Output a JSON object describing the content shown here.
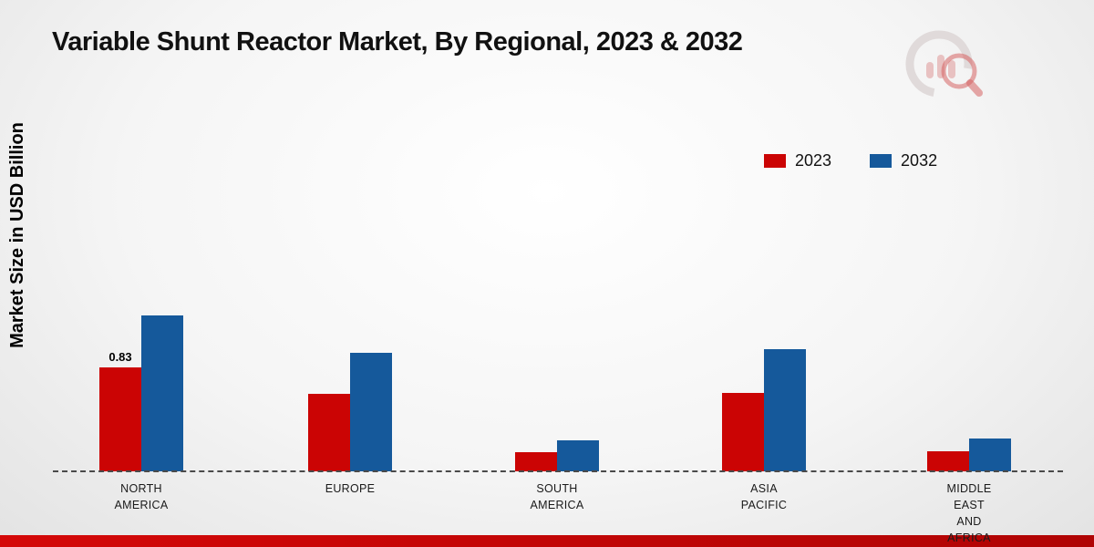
{
  "title": "Variable Shunt Reactor Market, By Regional, 2023 & 2032",
  "y_axis_label": "Market Size in USD Billion",
  "legend": [
    {
      "label": "2023",
      "color": "#cb0404"
    },
    {
      "label": "2032",
      "color": "#15599b"
    }
  ],
  "chart_data": {
    "type": "bar",
    "title": "Variable Shunt Reactor Market, By Regional, 2023 & 2032",
    "ylabel": "Market Size in USD Billion",
    "xlabel": "",
    "ylim": [
      0,
      1.4
    ],
    "grid": false,
    "legend_position": "top-right",
    "baseline_style": "dashed",
    "categories": [
      "NORTH AMERICA",
      "EUROPE",
      "SOUTH AMERICA",
      "ASIA PACIFIC",
      "MIDDLE EAST AND AFRICA"
    ],
    "series": [
      {
        "name": "2023",
        "color": "#cb0404",
        "values": [
          0.83,
          0.62,
          0.15,
          0.63,
          0.16
        ],
        "labels": [
          "0.83",
          "",
          "",
          "",
          ""
        ]
      },
      {
        "name": "2032",
        "color": "#15599b",
        "values": [
          1.25,
          0.95,
          0.25,
          0.98,
          0.26
        ],
        "labels": [
          "",
          "",
          "",
          "",
          ""
        ]
      }
    ]
  },
  "category_lines": [
    [
      "NORTH",
      "AMERICA"
    ],
    [
      "EUROPE"
    ],
    [
      "SOUTH",
      "AMERICA"
    ],
    [
      "ASIA",
      "PACIFIC"
    ],
    [
      "MIDDLE",
      "EAST",
      "AND",
      "AFRICA"
    ]
  ],
  "footer_bar_color": "#c40606",
  "logo_name": "market-research-logo"
}
